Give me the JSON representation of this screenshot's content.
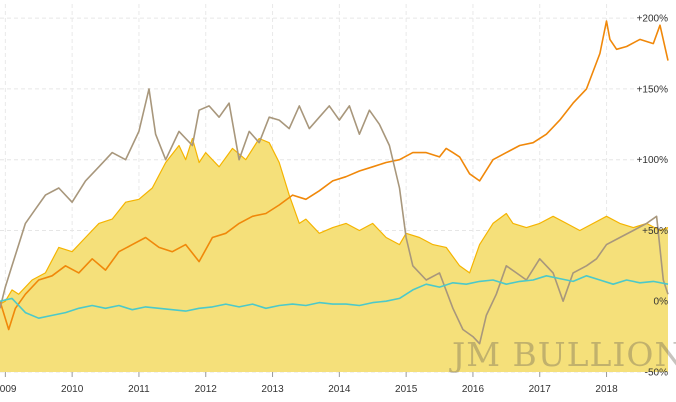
{
  "chart_data": {
    "type": "line",
    "title": "",
    "xlabel": "",
    "ylabel": "",
    "ylim": [
      -50,
      210
    ],
    "xlim": [
      2008.92,
      2018.92
    ],
    "x_ticks": [
      "2009",
      "2010",
      "2011",
      "2012",
      "2013",
      "2014",
      "2015",
      "2016",
      "2017",
      "2018"
    ],
    "y_ticks": [
      {
        "value": 200,
        "label": "+200%"
      },
      {
        "value": 150,
        "label": "+150%"
      },
      {
        "value": 100,
        "label": "+100%"
      },
      {
        "value": 50,
        "label": "+50%"
      },
      {
        "value": 0,
        "label": "0%"
      },
      {
        "value": -50,
        "label": "-50%"
      }
    ],
    "grid": true,
    "watermark": "JM BULLION",
    "colors": {
      "gold_fill": "#f5e07a",
      "gold_line": "#f5b400",
      "orange": "#f0880a",
      "brown": "#a8977c",
      "teal": "#4cc9c9"
    },
    "series": [
      {
        "key": "gold",
        "style": "area",
        "x": [
          2008.92,
          2009.0,
          2009.1,
          2009.2,
          2009.4,
          2009.6,
          2009.8,
          2010.0,
          2010.2,
          2010.4,
          2010.6,
          2010.8,
          2011.0,
          2011.2,
          2011.4,
          2011.6,
          2011.7,
          2011.8,
          2011.9,
          2012.0,
          2012.2,
          2012.4,
          2012.6,
          2012.8,
          2012.95,
          2013.1,
          2013.25,
          2013.4,
          2013.5,
          2013.7,
          2013.9,
          2014.1,
          2014.3,
          2014.5,
          2014.7,
          2014.9,
          2015.0,
          2015.2,
          2015.4,
          2015.6,
          2015.8,
          2015.95,
          2016.1,
          2016.3,
          2016.5,
          2016.6,
          2016.8,
          2017.0,
          2017.2,
          2017.4,
          2017.6,
          2017.8,
          2018.0,
          2018.2,
          2018.4,
          2018.6,
          2018.8,
          2018.92
        ],
        "values": [
          -2,
          0,
          8,
          5,
          15,
          20,
          38,
          35,
          45,
          55,
          58,
          70,
          72,
          80,
          98,
          110,
          100,
          115,
          98,
          105,
          95,
          108,
          100,
          115,
          112,
          98,
          75,
          55,
          58,
          48,
          52,
          55,
          50,
          55,
          45,
          40,
          48,
          45,
          40,
          38,
          25,
          20,
          40,
          55,
          62,
          55,
          52,
          55,
          60,
          55,
          50,
          55,
          60,
          55,
          52,
          55,
          50,
          52
        ]
      },
      {
        "key": "orange",
        "style": "line",
        "x": [
          2008.92,
          2009.05,
          2009.15,
          2009.3,
          2009.5,
          2009.7,
          2009.9,
          2010.1,
          2010.3,
          2010.5,
          2010.7,
          2010.9,
          2011.1,
          2011.3,
          2011.5,
          2011.7,
          2011.9,
          2012.1,
          2012.3,
          2012.5,
          2012.7,
          2012.9,
          2013.1,
          2013.3,
          2013.5,
          2013.7,
          2013.9,
          2014.1,
          2014.3,
          2014.5,
          2014.7,
          2014.9,
          2015.1,
          2015.3,
          2015.5,
          2015.6,
          2015.7,
          2015.8,
          2015.95,
          2016.1,
          2016.3,
          2016.5,
          2016.7,
          2016.9,
          2017.1,
          2017.3,
          2017.5,
          2017.7,
          2017.9,
          2018.0,
          2018.05,
          2018.15,
          2018.3,
          2018.5,
          2018.7,
          2018.8,
          2018.92
        ],
        "values": [
          0,
          -20,
          -5,
          5,
          15,
          18,
          25,
          20,
          30,
          22,
          35,
          40,
          45,
          38,
          35,
          40,
          28,
          45,
          48,
          55,
          60,
          62,
          68,
          75,
          72,
          78,
          85,
          88,
          92,
          95,
          98,
          100,
          105,
          105,
          102,
          108,
          105,
          102,
          90,
          85,
          100,
          105,
          110,
          112,
          118,
          128,
          140,
          150,
          175,
          198,
          185,
          178,
          180,
          185,
          182,
          195,
          170
        ]
      },
      {
        "key": "brown",
        "style": "line",
        "x": [
          2008.92,
          2009.0,
          2009.1,
          2009.2,
          2009.3,
          2009.45,
          2009.6,
          2009.8,
          2010.0,
          2010.2,
          2010.4,
          2010.6,
          2010.8,
          2011.0,
          2011.15,
          2011.25,
          2011.4,
          2011.6,
          2011.8,
          2011.9,
          2012.05,
          2012.2,
          2012.35,
          2012.5,
          2012.65,
          2012.8,
          2012.95,
          2013.1,
          2013.25,
          2013.4,
          2013.55,
          2013.7,
          2013.85,
          2014.0,
          2014.15,
          2014.3,
          2014.45,
          2014.6,
          2014.75,
          2014.9,
          2015.0,
          2015.1,
          2015.3,
          2015.5,
          2015.7,
          2015.85,
          2016.0,
          2016.1,
          2016.2,
          2016.35,
          2016.5,
          2016.65,
          2016.8,
          2017.0,
          2017.2,
          2017.35,
          2017.5,
          2017.7,
          2017.85,
          2018.0,
          2018.2,
          2018.4,
          2018.6,
          2018.75,
          2018.85,
          2018.92
        ],
        "values": [
          -5,
          10,
          25,
          40,
          55,
          65,
          75,
          80,
          70,
          85,
          95,
          105,
          100,
          120,
          150,
          118,
          100,
          120,
          110,
          135,
          138,
          130,
          140,
          100,
          120,
          112,
          130,
          128,
          122,
          138,
          122,
          130,
          138,
          128,
          138,
          118,
          135,
          125,
          110,
          80,
          45,
          25,
          15,
          20,
          -5,
          -20,
          -25,
          -30,
          -10,
          5,
          25,
          20,
          15,
          30,
          20,
          0,
          20,
          25,
          30,
          40,
          45,
          50,
          55,
          60,
          15,
          5
        ]
      },
      {
        "key": "teal",
        "style": "line",
        "x": [
          2008.92,
          2009.1,
          2009.3,
          2009.5,
          2009.7,
          2009.9,
          2010.1,
          2010.3,
          2010.5,
          2010.7,
          2010.9,
          2011.1,
          2011.3,
          2011.5,
          2011.7,
          2011.9,
          2012.1,
          2012.3,
          2012.5,
          2012.7,
          2012.9,
          2013.1,
          2013.3,
          2013.5,
          2013.7,
          2013.9,
          2014.1,
          2014.3,
          2014.5,
          2014.7,
          2014.9,
          2015.1,
          2015.3,
          2015.5,
          2015.7,
          2015.9,
          2016.1,
          2016.3,
          2016.5,
          2016.7,
          2016.9,
          2017.1,
          2017.3,
          2017.5,
          2017.7,
          2017.9,
          2018.1,
          2018.3,
          2018.5,
          2018.7,
          2018.92
        ],
        "values": [
          0,
          2,
          -8,
          -12,
          -10,
          -8,
          -5,
          -3,
          -5,
          -3,
          -6,
          -4,
          -5,
          -6,
          -7,
          -5,
          -4,
          -2,
          -4,
          -2,
          -5,
          -3,
          -2,
          -3,
          -1,
          -2,
          -2,
          -3,
          -1,
          0,
          2,
          8,
          12,
          10,
          13,
          12,
          14,
          15,
          12,
          14,
          15,
          18,
          16,
          14,
          18,
          15,
          12,
          15,
          13,
          14,
          12
        ]
      }
    ]
  }
}
